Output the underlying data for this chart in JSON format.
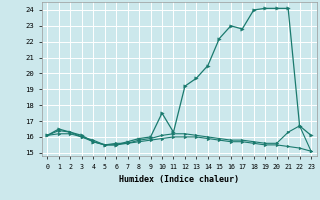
{
  "xlabel": "Humidex (Indice chaleur)",
  "ylabel": "",
  "bg_color": "#cce8ec",
  "grid_color": "#ffffff",
  "line_color": "#1a7a6e",
  "marker_color": "#1a7a6e",
  "xlim": [
    -0.5,
    23.5
  ],
  "ylim": [
    14.8,
    24.5
  ],
  "yticks": [
    15,
    16,
    17,
    18,
    19,
    20,
    21,
    22,
    23,
    24
  ],
  "xticks": [
    0,
    1,
    2,
    3,
    4,
    5,
    6,
    7,
    8,
    9,
    10,
    11,
    12,
    13,
    14,
    15,
    16,
    17,
    18,
    19,
    20,
    21,
    22,
    23
  ],
  "series": [
    {
      "x": [
        0,
        1,
        2,
        3,
        4,
        5,
        6,
        7,
        8,
        9,
        10,
        11,
        12,
        13,
        14,
        15,
        16,
        17,
        18,
        19,
        20,
        21,
        22,
        23
      ],
      "y": [
        16.1,
        16.5,
        16.3,
        16.1,
        15.7,
        15.5,
        15.5,
        15.7,
        15.9,
        16.0,
        17.5,
        16.3,
        19.2,
        19.7,
        20.5,
        22.2,
        23.0,
        22.8,
        24.0,
        24.1,
        24.1,
        24.1,
        16.7,
        16.1
      ]
    },
    {
      "x": [
        0,
        1,
        2,
        3,
        4,
        5,
        6,
        7,
        8,
        9,
        10,
        11,
        12,
        13,
        14,
        15,
        16,
        17,
        18,
        19,
        20,
        21,
        22,
        23
      ],
      "y": [
        16.1,
        16.4,
        16.3,
        16.0,
        15.7,
        15.5,
        15.5,
        15.6,
        15.7,
        15.8,
        15.9,
        16.0,
        16.0,
        16.0,
        15.9,
        15.8,
        15.7,
        15.7,
        15.6,
        15.5,
        15.5,
        15.4,
        15.3,
        15.1
      ]
    },
    {
      "x": [
        0,
        1,
        2,
        3,
        4,
        5,
        6,
        7,
        8,
        9,
        10,
        11,
        12,
        13,
        14,
        15,
        16,
        17,
        18,
        19,
        20,
        21,
        22,
        23
      ],
      "y": [
        16.1,
        16.2,
        16.2,
        16.0,
        15.8,
        15.5,
        15.6,
        15.6,
        15.8,
        15.9,
        16.1,
        16.2,
        16.2,
        16.1,
        16.0,
        15.9,
        15.8,
        15.8,
        15.7,
        15.6,
        15.6,
        16.3,
        16.7,
        15.1
      ]
    }
  ]
}
